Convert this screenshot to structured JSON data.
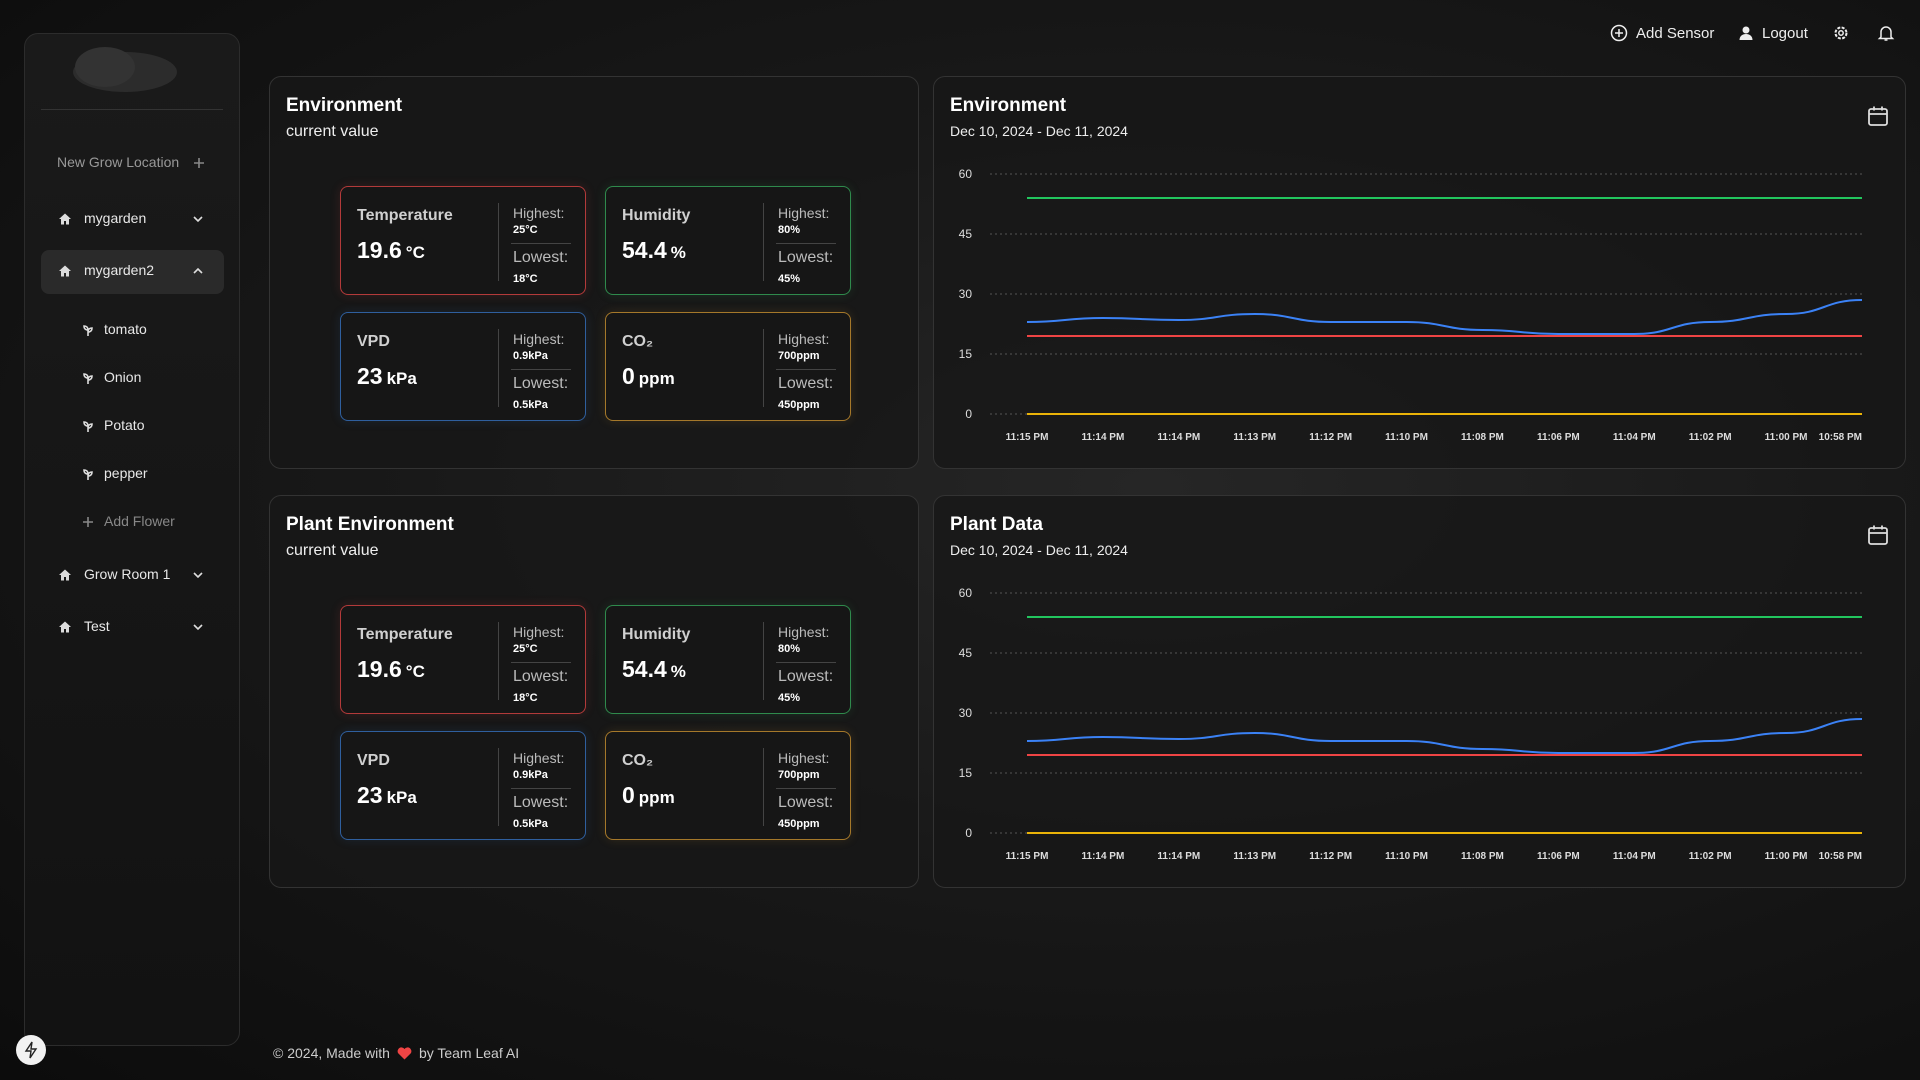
{
  "topbar": {
    "add_sensor": "Add Sensor",
    "logout": "Logout"
  },
  "sidebar": {
    "new_location": "New Grow Location",
    "locations": [
      {
        "name": "mygarden",
        "expanded": false
      },
      {
        "name": "mygarden2",
        "expanded": true,
        "plants": [
          "tomato",
          "Onion",
          "Potato",
          "pepper"
        ],
        "add_plant": "Add Flower"
      },
      {
        "name": "Grow Room 1",
        "expanded": false
      },
      {
        "name": "Test",
        "expanded": false
      }
    ]
  },
  "panels": [
    {
      "title": "Environment",
      "subtitle": "current value",
      "cards": [
        {
          "label": "Temperature",
          "value": 19.6,
          "unit": "°C",
          "highest_label": "Highest:",
          "highest": "25°C",
          "lowest_label": "Lowest:",
          "lowest": "18°C",
          "color": "#b33a3a"
        },
        {
          "label": "Humidity",
          "value": 54.4,
          "unit": "%",
          "highest_label": "Highest:",
          "highest": "80%",
          "lowest_label": "Lowest:",
          "lowest": "45%",
          "color": "#2f8a4c"
        },
        {
          "label": "VPD",
          "value": 23,
          "unit": "kPa",
          "highest_label": "Highest:",
          "highest": "0.9kPa",
          "lowest_label": "Lowest:",
          "lowest": "0.5kPa",
          "color": "#2f5f9e"
        },
        {
          "label": "CO₂",
          "value": 0,
          "unit": "ppm",
          "highest_label": "Highest:",
          "highest": "700ppm",
          "lowest_label": "Lowest:",
          "lowest": "450ppm",
          "color": "#a5782a"
        }
      ]
    },
    {
      "title": "Plant Environment",
      "subtitle": "current value",
      "cards": [
        {
          "label": "Temperature",
          "value": 19.6,
          "unit": "°C",
          "highest_label": "Highest:",
          "highest": "25°C",
          "lowest_label": "Lowest:",
          "lowest": "18°C",
          "color": "#b33a3a"
        },
        {
          "label": "Humidity",
          "value": 54.4,
          "unit": "%",
          "highest_label": "Highest:",
          "highest": "80%",
          "lowest_label": "Lowest:",
          "lowest": "45%",
          "color": "#2f8a4c"
        },
        {
          "label": "VPD",
          "value": 23,
          "unit": "kPa",
          "highest_label": "Highest:",
          "highest": "0.9kPa",
          "lowest_label": "Lowest:",
          "lowest": "0.5kPa",
          "color": "#2f5f9e"
        },
        {
          "label": "CO₂",
          "value": 0,
          "unit": "ppm",
          "highest_label": "Highest:",
          "highest": "700ppm",
          "lowest_label": "Lowest:",
          "lowest": "450ppm",
          "color": "#a5782a"
        }
      ]
    }
  ],
  "chart_data": [
    {
      "type": "line",
      "title": "Environment",
      "subtitle": "Dec 10, 2024 - Dec 11, 2024",
      "categories": [
        "11:15 PM",
        "11:14 PM",
        "11:14 PM",
        "11:13 PM",
        "11:12 PM",
        "11:10 PM",
        "11:08 PM",
        "11:06 PM",
        "11:04 PM",
        "11:02 PM",
        "11:00 PM",
        "10:58 PM"
      ],
      "ylim": [
        0,
        60
      ],
      "yticks": [
        0,
        15,
        30,
        45,
        60
      ],
      "grid": true,
      "series": [
        {
          "color": "#22c55e",
          "values": [
            54,
            54,
            54,
            54,
            54,
            54,
            54,
            54,
            54,
            54,
            54,
            54
          ]
        },
        {
          "color": "#3b82f6",
          "values": [
            23,
            24,
            23.5,
            25,
            23,
            23,
            21,
            20,
            20,
            23,
            25,
            28.5
          ]
        },
        {
          "color": "#ef4444",
          "values": [
            19.5,
            19.5,
            19.5,
            19.5,
            19.5,
            19.5,
            19.5,
            19.5,
            19.5,
            19.5,
            19.5,
            19.5
          ]
        },
        {
          "color": "#eab308",
          "values": [
            0,
            0,
            0,
            0,
            0,
            0,
            0,
            0,
            0,
            0,
            0,
            0
          ]
        }
      ]
    },
    {
      "type": "line",
      "title": "Plant Data",
      "subtitle": "Dec 10, 2024 - Dec 11, 2024",
      "categories": [
        "11:15 PM",
        "11:14 PM",
        "11:14 PM",
        "11:13 PM",
        "11:12 PM",
        "11:10 PM",
        "11:08 PM",
        "11:06 PM",
        "11:04 PM",
        "11:02 PM",
        "11:00 PM",
        "10:58 PM"
      ],
      "ylim": [
        0,
        60
      ],
      "yticks": [
        0,
        15,
        30,
        45,
        60
      ],
      "grid": true,
      "series": [
        {
          "color": "#22c55e",
          "values": [
            54,
            54,
            54,
            54,
            54,
            54,
            54,
            54,
            54,
            54,
            54,
            54
          ]
        },
        {
          "color": "#3b82f6",
          "values": [
            23,
            24,
            23.5,
            25,
            23,
            23,
            21,
            20,
            20,
            23,
            25,
            28.5
          ]
        },
        {
          "color": "#ef4444",
          "values": [
            19.5,
            19.5,
            19.5,
            19.5,
            19.5,
            19.5,
            19.5,
            19.5,
            19.5,
            19.5,
            19.5,
            19.5
          ]
        },
        {
          "color": "#eab308",
          "values": [
            0,
            0,
            0,
            0,
            0,
            0,
            0,
            0,
            0,
            0,
            0,
            0
          ]
        }
      ]
    }
  ],
  "footer": {
    "before": "© 2024, Made with",
    "after": "by Team Leaf AI"
  }
}
